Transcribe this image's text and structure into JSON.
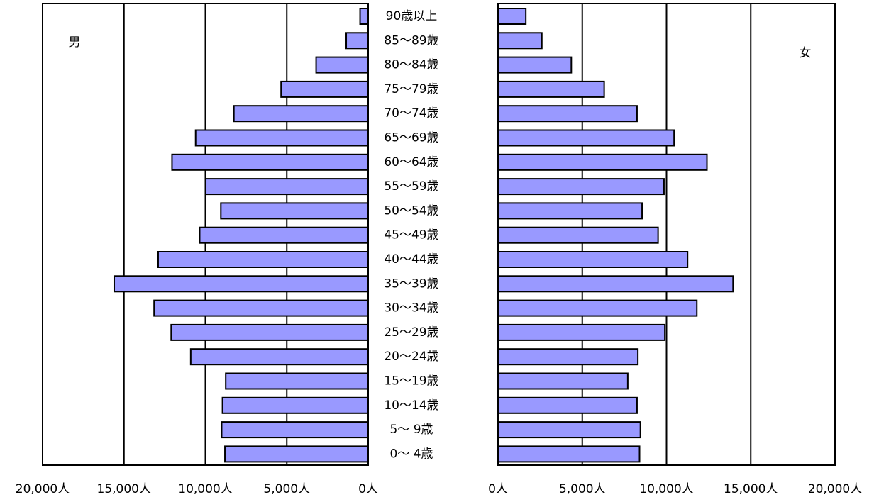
{
  "chart_data": {
    "type": "pyramid",
    "categories": [
      "90歳以上",
      "85～89歳",
      "80～84歳",
      "75～79歳",
      "70～74歳",
      "65～69歳",
      "60～64歳",
      "55～59歳",
      "50～54歳",
      "45～49歳",
      "40～44歳",
      "35～39歳",
      "30～34歳",
      "25～29歳",
      "20～24歳",
      "15～19歳",
      "10～14歳",
      "5～ 9歳",
      "0～ 4歳"
    ],
    "series": [
      {
        "name": "男",
        "color": "#9999ff",
        "values": [
          500,
          1350,
          3200,
          5350,
          8250,
          10600,
          12050,
          10000,
          9050,
          10350,
          12900,
          15600,
          13150,
          12100,
          10900,
          8750,
          8950,
          9000,
          8800
        ]
      },
      {
        "name": "女",
        "color": "#9999ff",
        "values": [
          1650,
          2600,
          4350,
          6300,
          8250,
          10450,
          12400,
          9850,
          8550,
          9500,
          11250,
          13950,
          11800,
          9900,
          8300,
          7700,
          8250,
          8450,
          8400
        ]
      }
    ],
    "xlim": [
      0,
      20000
    ],
    "xticks": [
      {
        "value": 0,
        "label": "0人"
      },
      {
        "value": 5000,
        "label": "5,000人"
      },
      {
        "value": 10000,
        "label": "10,000人"
      },
      {
        "value": 15000,
        "label": "15,000人"
      },
      {
        "value": 20000,
        "label": "20,000人"
      }
    ],
    "grid": true
  }
}
